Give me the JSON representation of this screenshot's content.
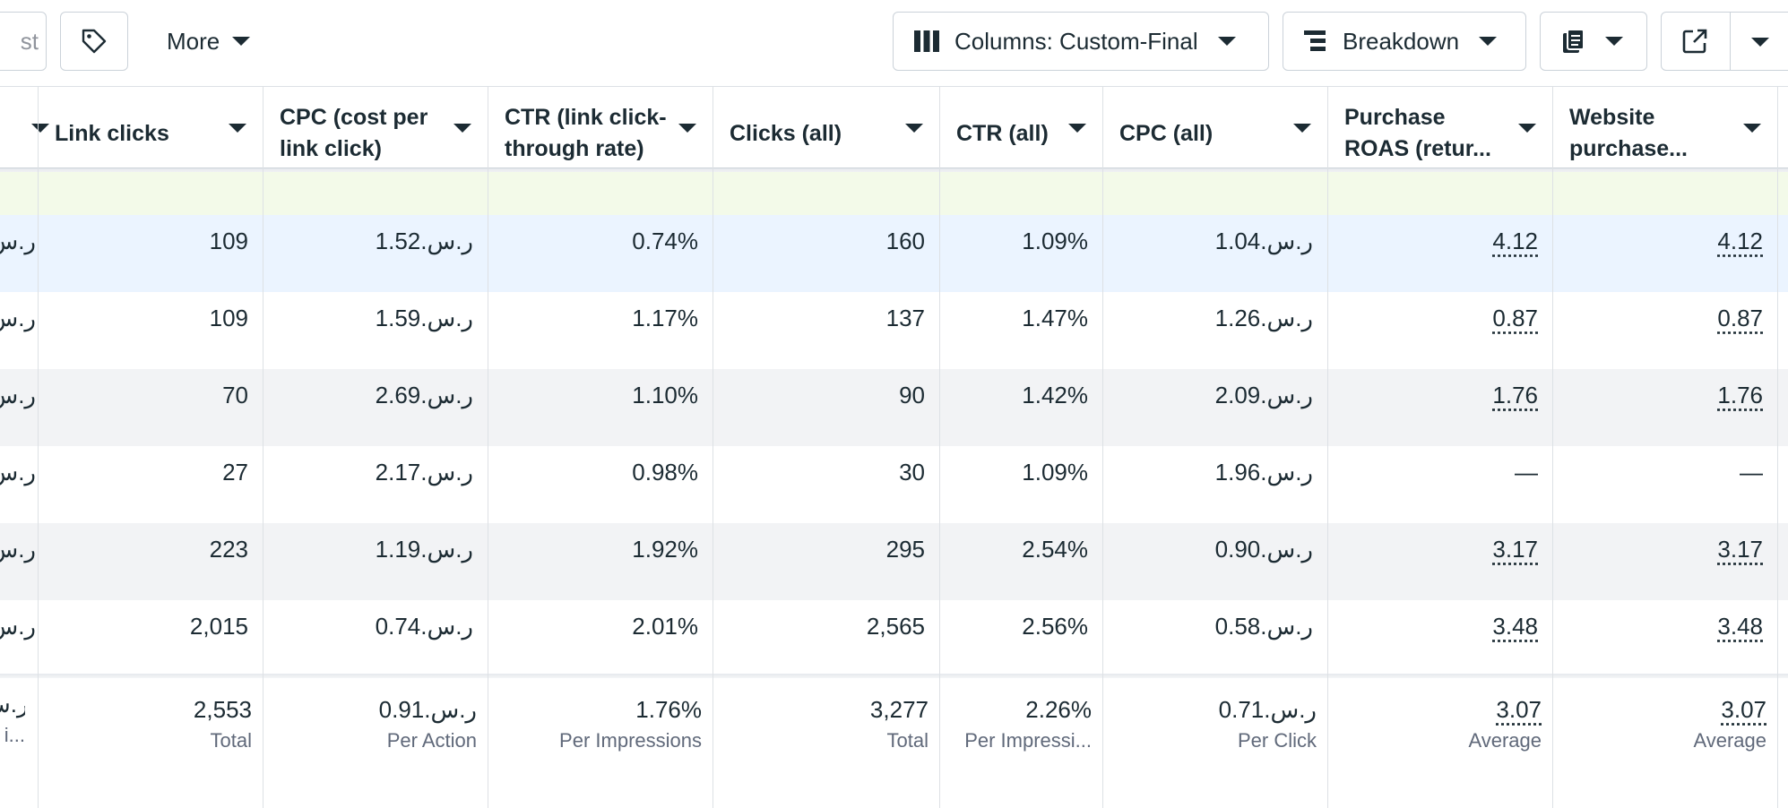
{
  "toolbar": {
    "search_fragment": "st",
    "more_label": "More",
    "columns_label": "Columns: Custom-Final",
    "breakdown_label": "Breakdown"
  },
  "columns": [
    {
      "label": "Link clicks"
    },
    {
      "label": "CPC (cost per link click)"
    },
    {
      "label": "CTR (link click-through rate)"
    },
    {
      "label": "Clicks (all)"
    },
    {
      "label": "CTR (all)"
    },
    {
      "label": "CPC (all)"
    },
    {
      "label": "Purchase ROAS (retur..."
    },
    {
      "label": "Website purchase..."
    }
  ],
  "rows": [
    {
      "edge": "ر.س",
      "cells": [
        "109",
        "1.52.ر.س",
        "0.74%",
        "160",
        "1.09%",
        "1.04.ر.س",
        "4.12",
        "4.12"
      ]
    },
    {
      "edge": "ر.س",
      "cells": [
        "109",
        "1.59.ر.س",
        "1.17%",
        "137",
        "1.47%",
        "1.26.ر.س",
        "0.87",
        "0.87"
      ]
    },
    {
      "edge": "ر.س",
      "cells": [
        "70",
        "2.69.ر.س",
        "1.10%",
        "90",
        "1.42%",
        "2.09.ر.س",
        "1.76",
        "1.76"
      ]
    },
    {
      "edge": "ر.س",
      "cells": [
        "27",
        "2.17.ر.س",
        "0.98%",
        "30",
        "1.09%",
        "1.96.ر.س",
        "—",
        "—"
      ]
    },
    {
      "edge": "ر.س",
      "cells": [
        "223",
        "1.19.ر.س",
        "1.92%",
        "295",
        "2.54%",
        "0.90.ر.س",
        "3.17",
        "3.17"
      ]
    },
    {
      "edge": "ر.س",
      "cells": [
        "2,015",
        "0.74.ر.س",
        "2.01%",
        "2,565",
        "2.56%",
        "0.58.ر.س",
        "3.48",
        "3.48"
      ]
    }
  ],
  "totals": {
    "edge": "ر.س",
    "edge_sub": "i...",
    "cells": [
      {
        "value": "2,553",
        "sub": "Total"
      },
      {
        "value": "0.91.ر.س",
        "sub": "Per Action"
      },
      {
        "value": "1.76%",
        "sub": "Per Impressions"
      },
      {
        "value": "3,277",
        "sub": "Total"
      },
      {
        "value": "2.26%",
        "sub": "Per Impressi..."
      },
      {
        "value": "0.71.ر.س",
        "sub": "Per Click"
      },
      {
        "value": "3.07",
        "sub": "Average"
      },
      {
        "value": "3.07",
        "sub": "Average"
      }
    ]
  },
  "colors": {
    "highlight_row": "#ebf4ff",
    "alt_row": "#f2f3f5",
    "green_strip": "#f3fae9"
  }
}
